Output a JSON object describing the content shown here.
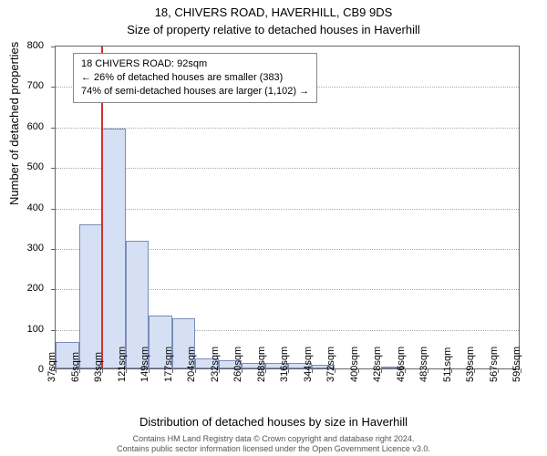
{
  "title": "18, CHIVERS ROAD, HAVERHILL, CB9 9DS",
  "subtitle": "Size of property relative to detached houses in Haverhill",
  "ylabel": "Number of detached properties",
  "xlabel": "Distribution of detached houses by size in Haverhill",
  "footer_line1": "Contains HM Land Registry data © Crown copyright and database right 2024.",
  "footer_line2": "Contains public sector information licensed under the Open Government Licence v3.0.",
  "histogram": {
    "type": "histogram",
    "y": {
      "min": 0,
      "max": 800,
      "step": 100
    },
    "x_labels": [
      "37sqm",
      "65sqm",
      "93sqm",
      "121sqm",
      "149sqm",
      "177sqm",
      "204sqm",
      "232sqm",
      "260sqm",
      "288sqm",
      "316sqm",
      "344sqm",
      "372sqm",
      "400sqm",
      "428sqm",
      "456sqm",
      "483sqm",
      "511sqm",
      "539sqm",
      "567sqm",
      "595sqm"
    ],
    "bin_start": 37,
    "bin_width": 27.9,
    "values": [
      65,
      355,
      592,
      315,
      130,
      125,
      25,
      20,
      14,
      14,
      14,
      10,
      0,
      0,
      3,
      0,
      0,
      0,
      0,
      0
    ],
    "bar_fill": "#d6e0f5",
    "bar_border": "#7a8db8",
    "grid_color": "#aaaaaa",
    "axis_color": "#666666",
    "background": "#ffffff",
    "marker_color": "#cc3333",
    "marker_sqm": 92
  },
  "annotation": {
    "line1": "18 CHIVERS ROAD: 92sqm",
    "line2": "← 26% of detached houses are smaller (383)",
    "line3": "74% of semi-detached houses are larger (1,102) →"
  },
  "fonts": {
    "title_size": 13,
    "label_size": 13,
    "tick_size": 11,
    "annotation_size": 11,
    "footer_size": 9
  }
}
